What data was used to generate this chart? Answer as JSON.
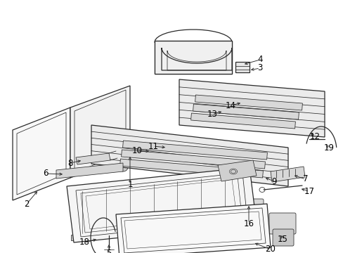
{
  "bg_color": "#ffffff",
  "line_color": "#2a2a2a",
  "label_color": "#000000",
  "font_size": 8.5,
  "lw": 0.9
}
